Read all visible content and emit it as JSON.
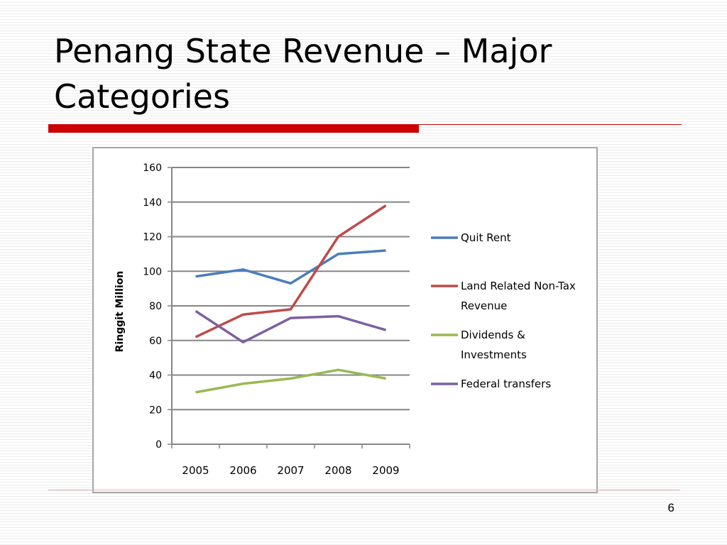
{
  "slide": {
    "title": "Penang State Revenue – Major Categories",
    "page_number": "6"
  },
  "chart_data": {
    "type": "line",
    "title": "",
    "xlabel": "",
    "ylabel": "Ringgit Million",
    "ylim": [
      0,
      160
    ],
    "yticks": [
      0,
      20,
      40,
      60,
      80,
      100,
      120,
      140,
      160
    ],
    "categories": [
      "2005",
      "2006",
      "2007",
      "2008",
      "2009"
    ],
    "grid": "horizontal",
    "legend_position": "right",
    "series": [
      {
        "name": "Quit Rent",
        "color": "#4a7ebb",
        "values": [
          97,
          101,
          93,
          110,
          112
        ]
      },
      {
        "name": "Land Related Non-Tax Revenue",
        "color": "#be4b48",
        "values": [
          62,
          75,
          78,
          120,
          138
        ]
      },
      {
        "name": "Dividends & Investments",
        "color": "#98b954",
        "values": [
          30,
          35,
          38,
          43,
          38
        ]
      },
      {
        "name": "Federal transfers",
        "color": "#7d60a0",
        "values": [
          77,
          59,
          73,
          74,
          66
        ]
      }
    ],
    "legend_lines": [
      [
        "Quit Rent"
      ],
      [
        "Land Related Non-Tax",
        "Revenue"
      ],
      [
        "Dividends &",
        "Investments"
      ],
      [
        "Federal transfers"
      ]
    ]
  }
}
